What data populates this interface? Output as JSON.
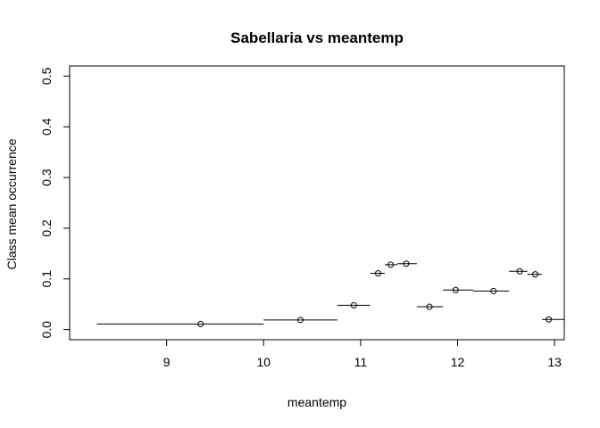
{
  "chart_data": {
    "type": "scatter",
    "title": "Sabellaria vs meantemp",
    "xlabel": "meantemp",
    "ylabel": "Class mean occurrence",
    "xlim": [
      8.0,
      13.1
    ],
    "ylim": [
      -0.02,
      0.52
    ],
    "x_ticks": [
      9,
      10,
      11,
      12,
      13
    ],
    "y_ticks": [
      0.0,
      0.1,
      0.2,
      0.3,
      0.4,
      0.5
    ],
    "x_tick_labels": [
      "9",
      "10",
      "11",
      "12",
      "13"
    ],
    "y_tick_labels": [
      "0.0",
      "0.1",
      "0.2",
      "0.3",
      "0.4",
      "0.5"
    ],
    "grid": false,
    "points": [
      {
        "x": 9.35,
        "y": 0.011,
        "x_start": 8.28,
        "x_end": 10.0
      },
      {
        "x": 10.38,
        "y": 0.019,
        "x_start": 10.0,
        "x_end": 10.76
      },
      {
        "x": 10.93,
        "y": 0.048,
        "x_start": 10.76,
        "x_end": 11.1
      },
      {
        "x": 11.18,
        "y": 0.111,
        "x_start": 11.1,
        "x_end": 11.25
      },
      {
        "x": 11.31,
        "y": 0.128,
        "x_start": 11.25,
        "x_end": 11.38
      },
      {
        "x": 11.47,
        "y": 0.13,
        "x_start": 11.38,
        "x_end": 11.58
      },
      {
        "x": 11.71,
        "y": 0.045,
        "x_start": 11.58,
        "x_end": 11.85
      },
      {
        "x": 11.98,
        "y": 0.078,
        "x_start": 11.85,
        "x_end": 12.16
      },
      {
        "x": 12.37,
        "y": 0.076,
        "x_start": 12.16,
        "x_end": 12.53
      },
      {
        "x": 12.64,
        "y": 0.115,
        "x_start": 12.53,
        "x_end": 12.72
      },
      {
        "x": 12.8,
        "y": 0.109,
        "x_start": 12.72,
        "x_end": 12.87
      },
      {
        "x": 12.94,
        "y": 0.02,
        "x_start": 12.87,
        "x_end": 13.1
      }
    ]
  }
}
